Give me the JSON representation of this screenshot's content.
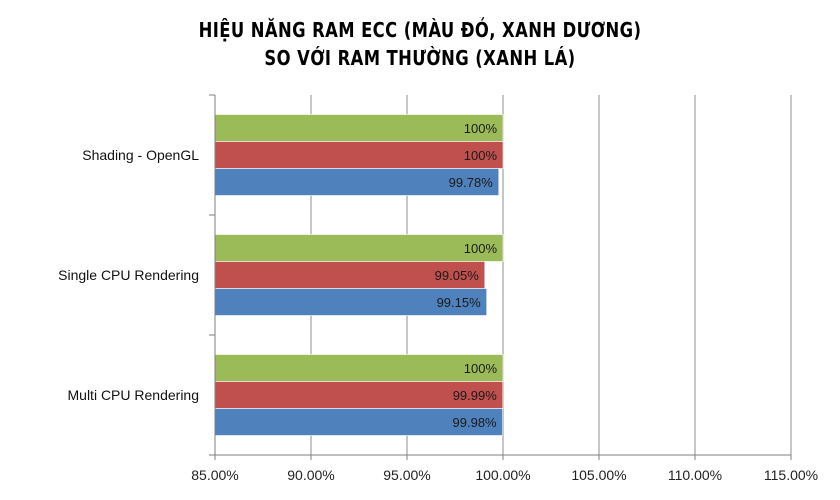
{
  "chart_data": {
    "type": "bar",
    "orientation": "horizontal",
    "title": [
      "HIỆU NĂNG RAM ECC (MÀU ĐỎ, XANH DƯƠNG)",
      "SO VỚI RAM THƯỜNG (XANH LÁ)"
    ],
    "xlabel": "",
    "ylabel": "",
    "categories": [
      "Shading - OpenGL",
      "Single CPU Rendering",
      "Multi CPU Rendering"
    ],
    "xlim": [
      85,
      115
    ],
    "xticks": [
      85,
      90,
      95,
      100,
      105,
      110,
      115
    ],
    "xtick_labels": [
      "85.00%",
      "90.00%",
      "95.00%",
      "100.00%",
      "105.00%",
      "110.00%",
      "115.00%"
    ],
    "grid": true,
    "legend": "none",
    "series": [
      {
        "color": "#9bbb59",
        "values": [
          100,
          100,
          100
        ],
        "labels": [
          "100%",
          "100%",
          "100%"
        ]
      },
      {
        "color": "#c0504d",
        "values": [
          100,
          99.05,
          99.99
        ],
        "labels": [
          "100%",
          "99.05%",
          "99.99%"
        ]
      },
      {
        "color": "#4f81bd",
        "values": [
          99.78,
          99.15,
          99.98
        ],
        "labels": [
          "99.78%",
          "99.15%",
          "99.98%"
        ]
      }
    ]
  }
}
